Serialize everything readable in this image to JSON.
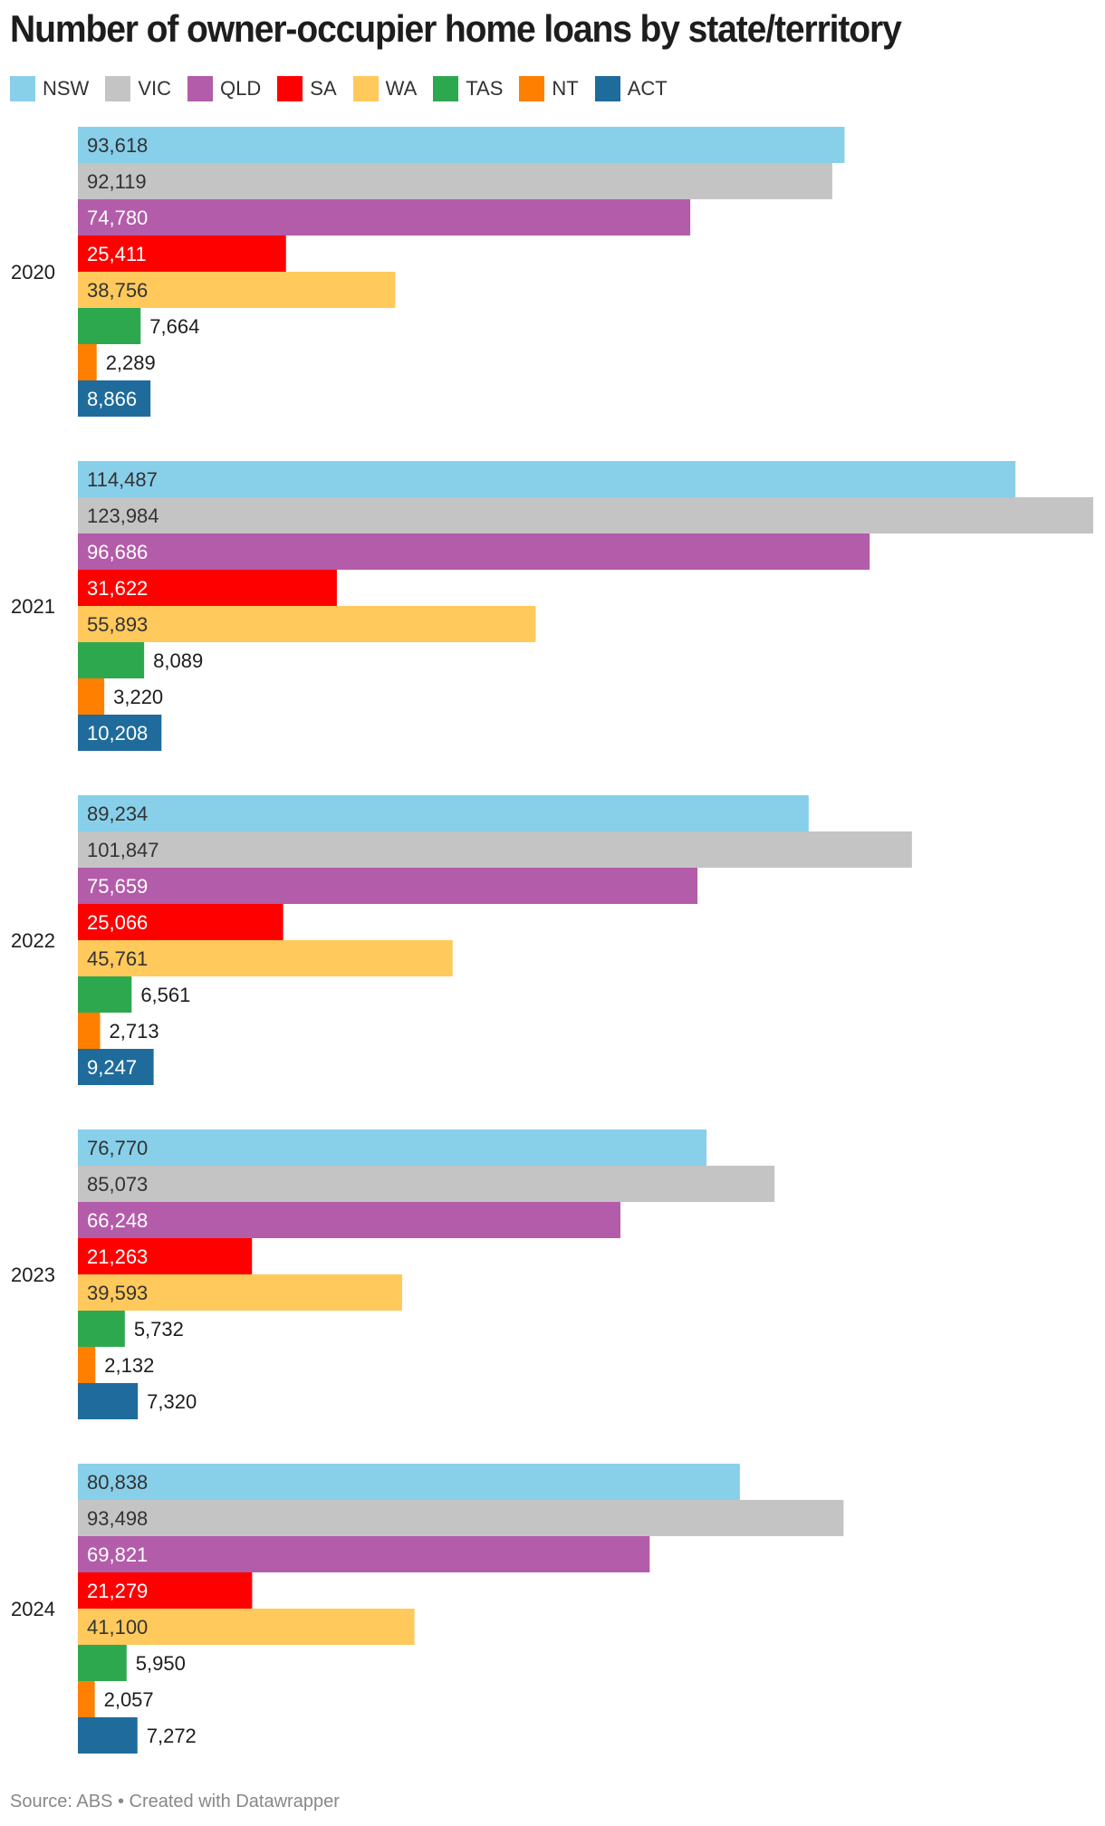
{
  "chart_data": {
    "type": "bar",
    "orientation": "horizontal-grouped",
    "title": "Number of owner-occupier home loans by state/territory",
    "categories": [
      "2020",
      "2021",
      "2022",
      "2023",
      "2024"
    ],
    "series": [
      {
        "name": "NSW",
        "color": "#88cfea",
        "values": [
          93618,
          114487,
          89234,
          76770,
          80838
        ]
      },
      {
        "name": "VIC",
        "color": "#c4c4c4",
        "values": [
          92119,
          123984,
          101847,
          85073,
          93498
        ]
      },
      {
        "name": "QLD",
        "color": "#b35ca9",
        "values": [
          74780,
          96686,
          75659,
          66248,
          69821
        ]
      },
      {
        "name": "SA",
        "color": "#ff0000",
        "values": [
          25411,
          31622,
          25066,
          21263,
          21279
        ]
      },
      {
        "name": "WA",
        "color": "#ffc95c",
        "values": [
          38756,
          55893,
          45761,
          39593,
          41100
        ]
      },
      {
        "name": "TAS",
        "color": "#2ea84f",
        "values": [
          7664,
          8089,
          6561,
          5732,
          5950
        ]
      },
      {
        "name": "NT",
        "color": "#ff7f00",
        "values": [
          2289,
          3220,
          2713,
          2132,
          2057
        ]
      },
      {
        "name": "ACT",
        "color": "#1f6b9c",
        "values": [
          8866,
          10208,
          9247,
          7320,
          7272
        ]
      }
    ],
    "xlim": [
      0,
      123984
    ],
    "legend": "top-left",
    "grid": false,
    "data_labels": true
  },
  "footer": "Source: ABS • Created with Datawrapper"
}
